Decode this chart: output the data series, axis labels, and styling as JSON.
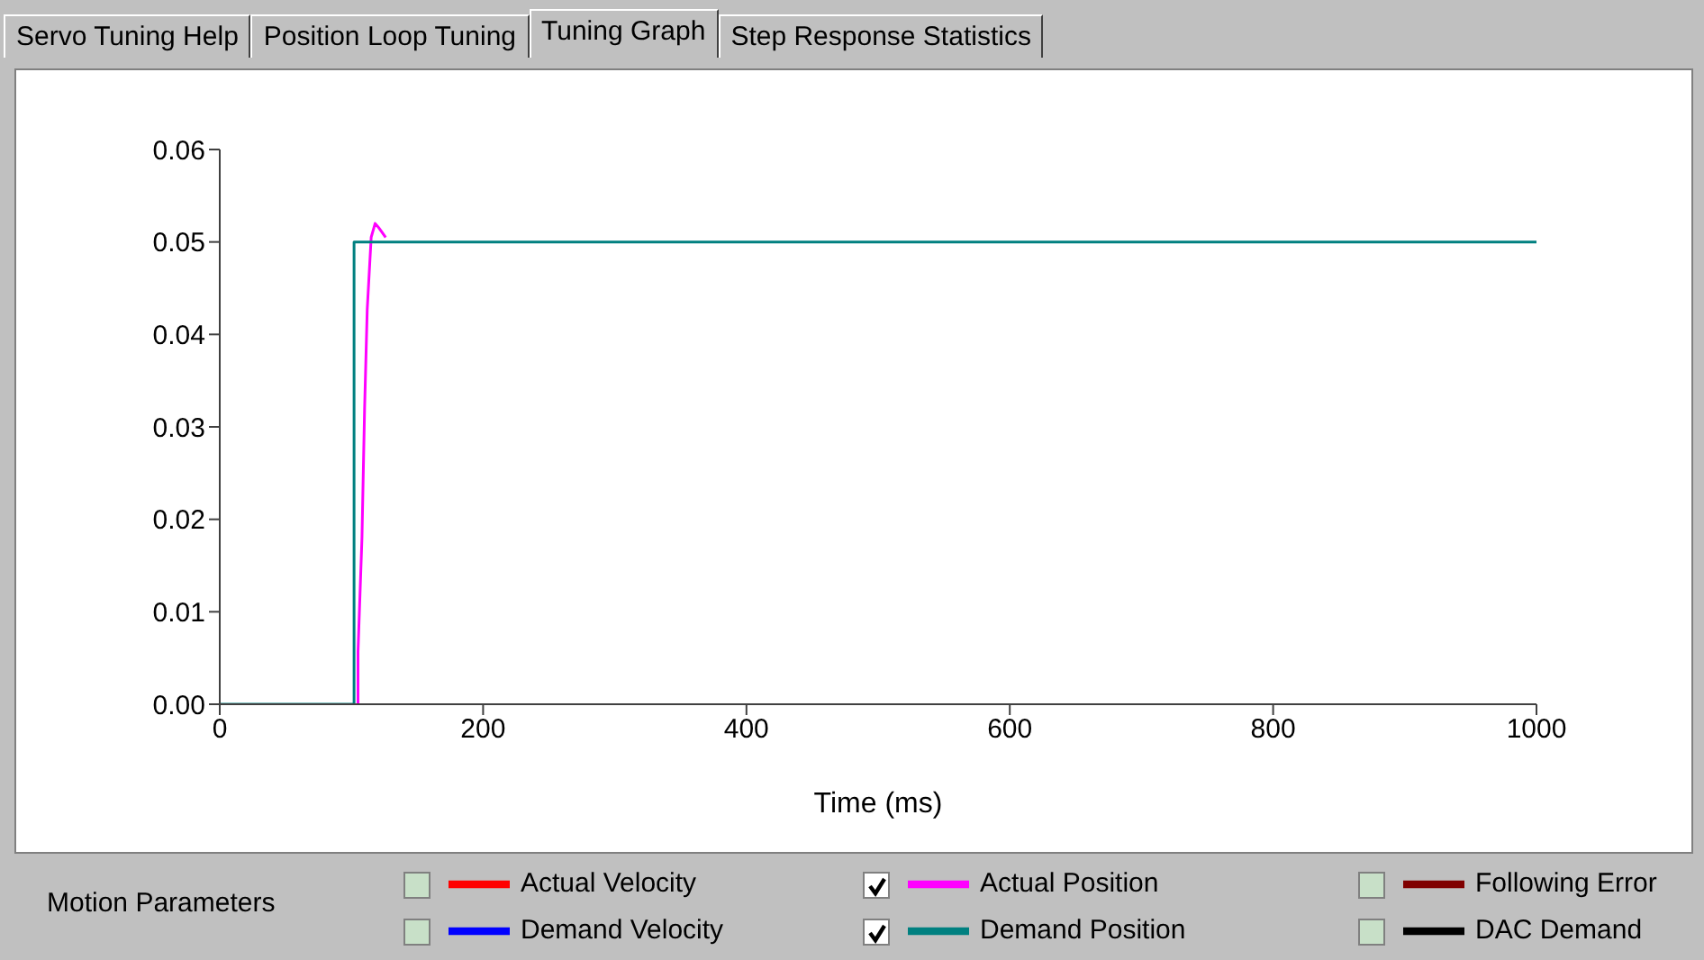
{
  "chart_data": {
    "type": "line",
    "annotations": [
      "Servo Tuning Help",
      "Position Loop Tuning",
      "Tuning Graph",
      "Step Response Statistics"
    ],
    "xlabel": "Time (ms)",
    "legend_title": "Motion Parameters",
    "legend": "bottom",
    "marker": "none",
    "line_style": "solid",
    "xlim": [
      0,
      1000
    ],
    "xticks": [
      0,
      200,
      400,
      600,
      800,
      1000
    ],
    "ylim": [
      0,
      0.06
    ],
    "yticks": [
      {
        "value": 0,
        "label": "0.00"
      },
      {
        "value": 0.01,
        "label": "0.01"
      },
      {
        "value": 0.02,
        "label": "0.02"
      },
      {
        "value": 0.03,
        "label": "0.03"
      },
      {
        "value": 0.04,
        "label": "0.04"
      },
      {
        "value": 0.05,
        "label": "0.05"
      },
      {
        "value": 0.06,
        "label": "0.06"
      }
    ],
    "series": [
      {
        "name": "Actual Velocity",
        "color": "#ff0000"
      },
      {
        "name": "Demand Velocity",
        "color": "#0000ff"
      },
      {
        "name": "Actual Position",
        "color": "#ff00ff",
        "x": [
          105,
          105,
          108,
          110,
          112,
          115,
          118,
          121,
          126
        ],
        "values": [
          0,
          0.0057,
          0.018,
          0.032,
          0.0427,
          0.0505,
          0.052,
          0.0515,
          0.0505
        ]
      },
      {
        "name": "Demand Position",
        "color": "#008080",
        "x": [
          0,
          102,
          102,
          1000
        ],
        "values": [
          0,
          0,
          0.05,
          0.05
        ]
      },
      {
        "name": "Following Error",
        "color": "#800000"
      },
      {
        "name": "DAC Demand",
        "color": "#000000"
      }
    ]
  }
}
